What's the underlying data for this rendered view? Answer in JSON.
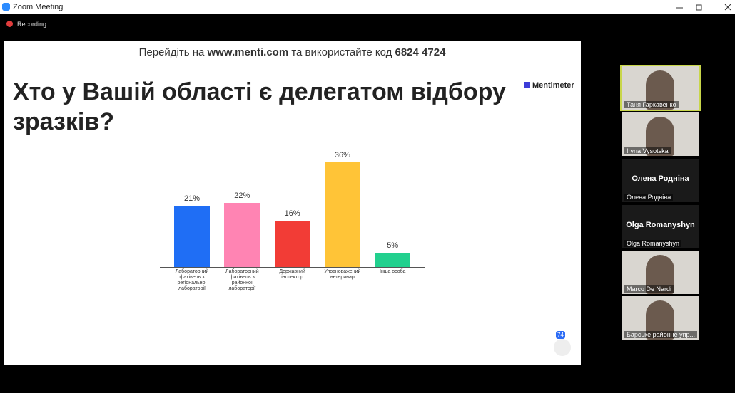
{
  "window": {
    "title": "Zoom Meeting",
    "recording": "Recording"
  },
  "slide": {
    "instruction": {
      "prefix": "Перейдіть на",
      "site": "www.menti.com",
      "middle": "та використайте код",
      "code": "6824 4724"
    },
    "title": "Хто у Вашій області є делегатом відбору зразків?",
    "brand": "Mentimeter",
    "responses": "74"
  },
  "chart_data": {
    "type": "bar",
    "categories": [
      "Лабораторний фахівець з регіональної лабораторії",
      "Лабораторний фахівець з районної лабораторії",
      "Державний інспектор",
      "Уповноважений ветеринар",
      "Інша особа"
    ],
    "values": [
      21,
      22,
      16,
      36,
      5
    ],
    "value_labels": [
      "21%",
      "22%",
      "16%",
      "36%",
      "5%"
    ],
    "colors": [
      "#1f6ef5",
      "#ff84b3",
      "#f23c36",
      "#ffc437",
      "#22d08e"
    ]
  },
  "participants": [
    {
      "name": "Таня Гаркавенко",
      "video": true
    },
    {
      "name": "Iryna Vysotska",
      "video": true
    },
    {
      "name": "Олена Родніна",
      "video": false
    },
    {
      "name": "Olga Romanyshyn",
      "video": false
    },
    {
      "name": "Marco De Nardi",
      "video": true
    },
    {
      "name": "Барське районне упр...",
      "video": true
    }
  ]
}
